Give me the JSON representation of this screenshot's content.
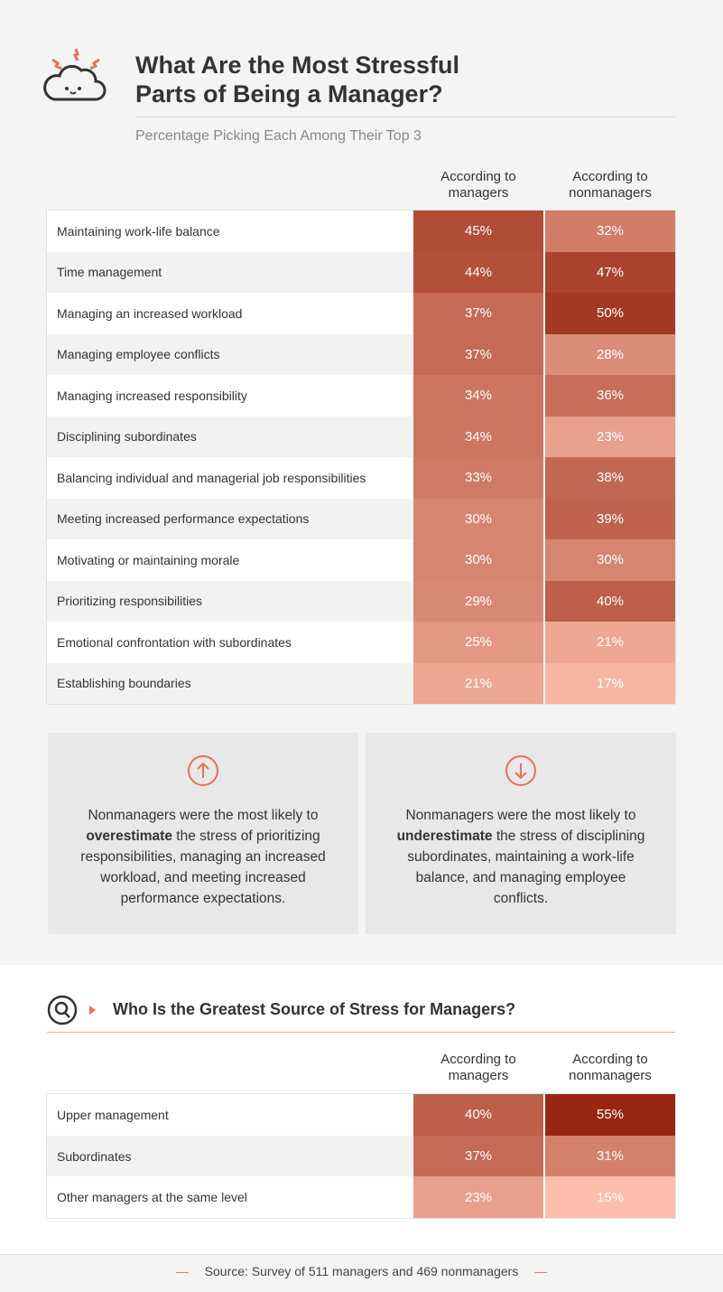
{
  "header": {
    "title": [
      "What Are the Most Stressful",
      "Parts of Being a Manager?"
    ],
    "subtitle": "Percentage Picking Each Among Their Top 3"
  },
  "table1": {
    "columns": [
      "According to managers",
      "According to nonmanagers"
    ],
    "rows": [
      {
        "label": "Maintaining work-life balance",
        "values": [
          45,
          32
        ],
        "value_labels": [
          "45%",
          "32%"
        ]
      },
      {
        "label": "Time management",
        "values": [
          44,
          47
        ],
        "value_labels": [
          "44%",
          "47%"
        ]
      },
      {
        "label": "Managing an increased workload",
        "values": [
          37,
          50
        ],
        "value_labels": [
          "37%",
          "50%"
        ]
      },
      {
        "label": "Managing employee conflicts",
        "values": [
          37,
          28
        ],
        "value_labels": [
          "37%",
          "28%"
        ]
      },
      {
        "label": "Managing increased responsibility",
        "values": [
          34,
          36
        ],
        "value_labels": [
          "34%",
          "36%"
        ]
      },
      {
        "label": "Disciplining subordinates",
        "values": [
          34,
          23
        ],
        "value_labels": [
          "34%",
          "23%"
        ]
      },
      {
        "label": "Balancing individual and managerial job responsibilities",
        "values": [
          33,
          38
        ],
        "value_labels": [
          "33%",
          "38%"
        ]
      },
      {
        "label": "Meeting increased performance expectations",
        "values": [
          30,
          39
        ],
        "value_labels": [
          "30%",
          "39%"
        ]
      },
      {
        "label": "Motivating or maintaining morale",
        "values": [
          30,
          30
        ],
        "value_labels": [
          "30%",
          "30%"
        ]
      },
      {
        "label": "Prioritizing responsibilities",
        "values": [
          29,
          40
        ],
        "value_labels": [
          "29%",
          "40%"
        ]
      },
      {
        "label": "Emotional confrontation with subordinates",
        "values": [
          25,
          21
        ],
        "value_labels": [
          "25%",
          "21%"
        ]
      },
      {
        "label": "Establishing boundaries",
        "values": [
          21,
          17
        ],
        "value_labels": [
          "21%",
          "17%"
        ]
      }
    ]
  },
  "notes": [
    {
      "before": "Nonmanagers were the most likely to ",
      "bold": "overestimate",
      "after": " the stress of prioritizing responsibilities, managing an increased workload, and meeting increased performance expectations."
    },
    {
      "before": "Nonmanagers were the most likely to ",
      "bold": "underestimate",
      "after": " the stress of disciplining subordinates, maintaining a work-life balance, and managing employee conflicts."
    }
  ],
  "section2": {
    "title": "Who Is the Greatest Source of Stress for Managers?",
    "columns": [
      "According to managers",
      "According to nonmanagers"
    ],
    "rows": [
      {
        "label": "Upper management",
        "values": [
          40,
          55
        ],
        "value_labels": [
          "40%",
          "55%"
        ]
      },
      {
        "label": "Subordinates",
        "values": [
          37,
          31
        ],
        "value_labels": [
          "37%",
          "31%"
        ]
      },
      {
        "label": "Other managers at the same level",
        "values": [
          23,
          15
        ],
        "value_labels": [
          "23%",
          "15%"
        ]
      }
    ]
  },
  "footer": {
    "source": "Source: Survey of 511 managers and 469 nonmanagers"
  }
}
